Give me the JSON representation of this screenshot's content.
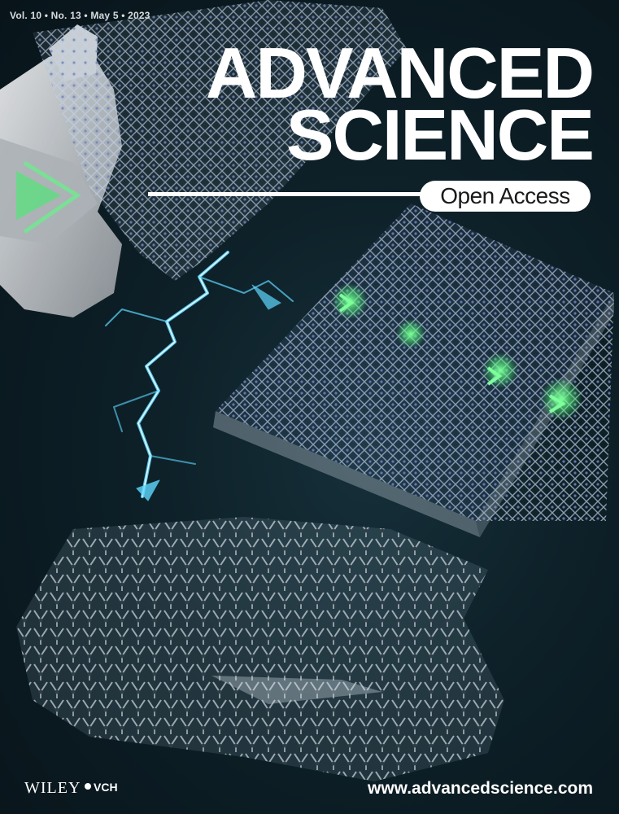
{
  "issue_line": "Vol. 10 • No. 13 • May 5 • 2023",
  "masthead": {
    "line1": "ADVANCED",
    "line2": "SCIENCE",
    "badge": "Open Access"
  },
  "publisher": {
    "name": "WILEY",
    "imprint": "VCH"
  },
  "website": "www.advancedscience.com",
  "colors": {
    "background": "#0d1f27",
    "glow_green": "#3cff6a",
    "lightning": "#5fd8ff",
    "mesh": "#b7c6d8"
  }
}
